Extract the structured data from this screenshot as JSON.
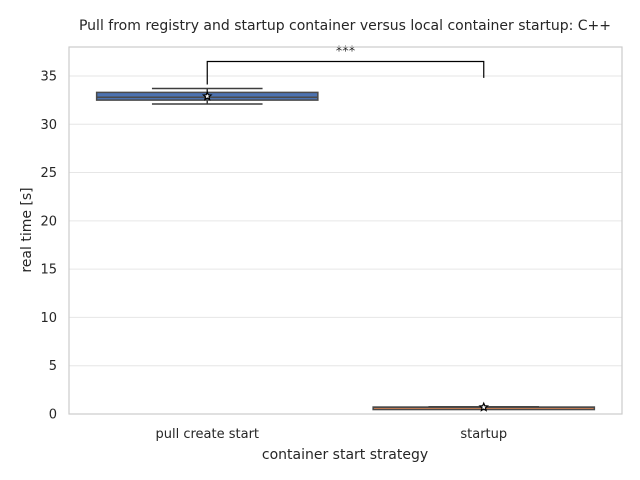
{
  "chart_data": {
    "type": "box",
    "title": "Pull from registry and startup container versus local container startup: C++",
    "xlabel": "container start strategy",
    "ylabel": "real time [s]",
    "ylim": [
      0,
      38
    ],
    "yticks": [
      0,
      5,
      10,
      15,
      20,
      25,
      30,
      35
    ],
    "grid": true,
    "categories": [
      "pull create start",
      "startup"
    ],
    "boxes": [
      {
        "category": "pull create start",
        "whisker_low": 32.1,
        "q1": 32.5,
        "median": 32.8,
        "q3": 33.3,
        "whisker_high": 33.7,
        "mean": 32.9,
        "color": "#4c72b0"
      },
      {
        "category": "startup",
        "whisker_low": 0.65,
        "q1": 0.68,
        "median": 0.7,
        "q3": 0.72,
        "whisker_high": 0.75,
        "mean": 0.7,
        "color": "#dd8452"
      }
    ],
    "significance": {
      "pair": [
        "pull create start",
        "startup"
      ],
      "label": "***",
      "y": 36.5
    }
  }
}
